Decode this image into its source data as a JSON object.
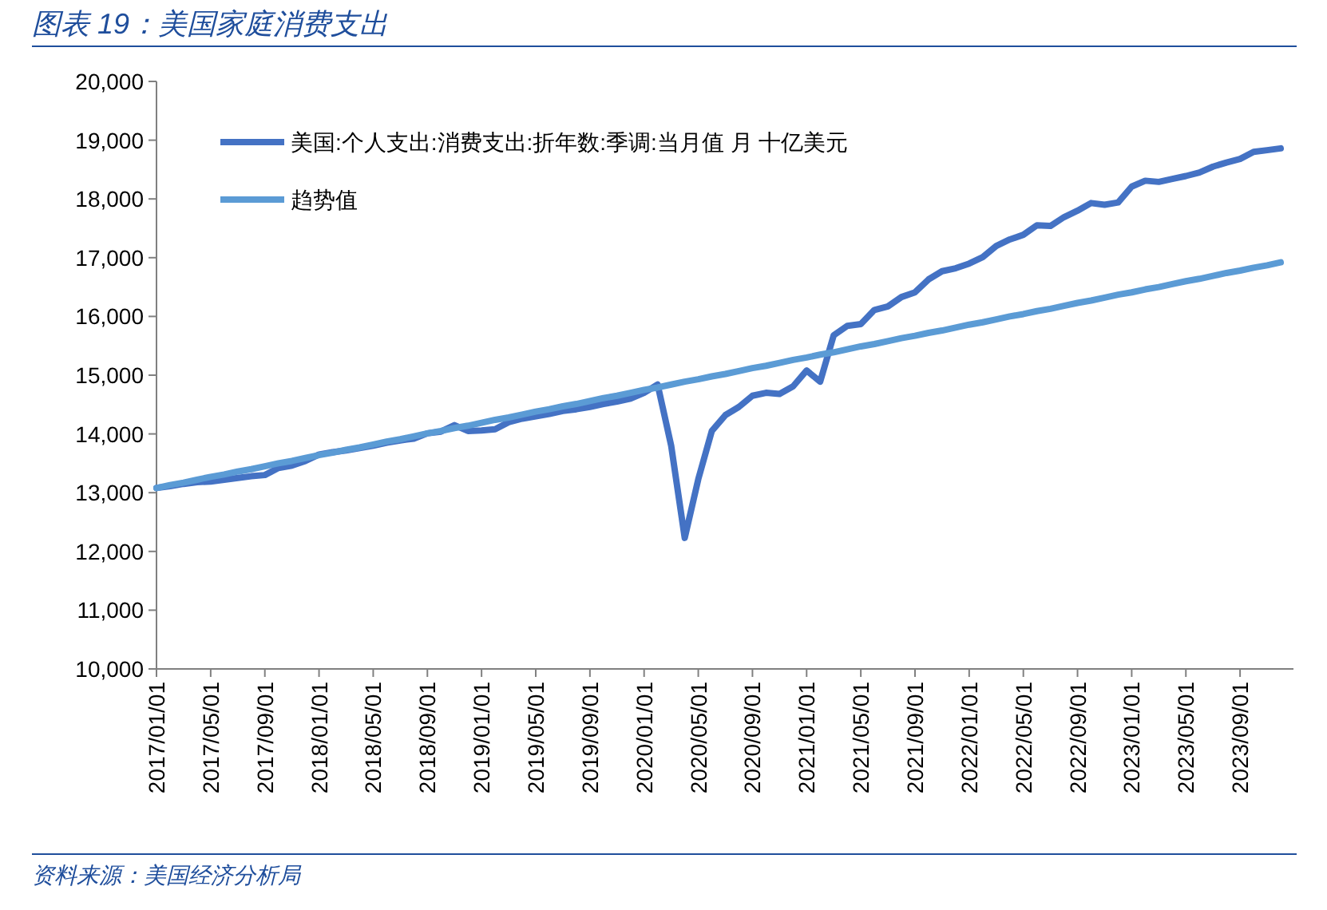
{
  "chart_data": {
    "type": "line",
    "title": "图表 19：美国家庭消费支出",
    "categories": [
      "2017/01/01",
      null,
      null,
      null,
      "2017/05/01",
      null,
      null,
      null,
      "2017/09/01",
      null,
      null,
      null,
      "2018/01/01",
      null,
      null,
      null,
      "2018/05/01",
      null,
      null,
      null,
      "2018/09/01",
      null,
      null,
      null,
      "2019/01/01",
      null,
      null,
      null,
      "2019/05/01",
      null,
      null,
      null,
      "2019/09/01",
      null,
      null,
      null,
      "2020/01/01",
      null,
      null,
      null,
      "2020/05/01",
      null,
      null,
      null,
      "2020/09/01",
      null,
      null,
      null,
      "2021/01/01",
      null,
      null,
      null,
      "2021/05/01",
      null,
      null,
      null,
      "2021/09/01",
      null,
      null,
      null,
      "2022/01/01",
      null,
      null,
      null,
      "2022/05/01",
      null,
      null,
      null,
      "2022/09/01",
      null,
      null,
      null,
      "2023/01/01",
      null,
      null,
      null,
      "2023/05/01",
      null,
      null,
      null,
      "2023/09/01",
      null,
      null,
      null
    ],
    "series": [
      {
        "name": "美国:个人支出:消费支出:折年数:季调:当月值 月 十亿美元",
        "color": "#4472c4",
        "values": [
          13080,
          13110,
          13150,
          13180,
          13190,
          13220,
          13250,
          13280,
          13300,
          13420,
          13460,
          13540,
          13650,
          13690,
          13720,
          13760,
          13800,
          13850,
          13890,
          13920,
          14010,
          14040,
          14150,
          14050,
          14060,
          14080,
          14200,
          14260,
          14300,
          14340,
          14390,
          14420,
          14460,
          14510,
          14550,
          14600,
          14700,
          14840,
          13800,
          12230,
          13230,
          14050,
          14320,
          14460,
          14650,
          14700,
          14680,
          14810,
          15080,
          14890,
          15680,
          15840,
          15870,
          16110,
          16170,
          16330,
          16410,
          16630,
          16770,
          16820,
          16900,
          17010,
          17200,
          17310,
          17390,
          17550,
          17540,
          17690,
          17800,
          17930,
          17900,
          17940,
          18210,
          18310,
          18290,
          18340,
          18390,
          18450,
          18550,
          18620,
          18680,
          18800,
          18830,
          18860
        ]
      },
      {
        "name": "趋势值",
        "color": "#5b9bd5",
        "values": [
          13080,
          13130,
          13170,
          13220,
          13270,
          13310,
          13360,
          13400,
          13450,
          13500,
          13540,
          13590,
          13640,
          13680,
          13730,
          13770,
          13820,
          13870,
          13910,
          13960,
          14010,
          14050,
          14100,
          14140,
          14190,
          14240,
          14280,
          14330,
          14380,
          14420,
          14470,
          14510,
          14560,
          14610,
          14650,
          14700,
          14750,
          14790,
          14840,
          14890,
          14930,
          14980,
          15020,
          15070,
          15120,
          15160,
          15210,
          15260,
          15300,
          15350,
          15390,
          15440,
          15490,
          15530,
          15580,
          15630,
          15670,
          15720,
          15760,
          15810,
          15860,
          15900,
          15950,
          16000,
          16040,
          16090,
          16130,
          16180,
          16230,
          16270,
          16320,
          16370,
          16410,
          16460,
          16500,
          16550,
          16600,
          16640,
          16690,
          16740,
          16780,
          16830,
          16870,
          16920
        ]
      }
    ],
    "ylim": [
      10000,
      20000
    ],
    "yticks": [
      {
        "value": 10000,
        "label": "10,000"
      },
      {
        "value": 11000,
        "label": "11,000"
      },
      {
        "value": 12000,
        "label": "12,000"
      },
      {
        "value": 13000,
        "label": "13,000"
      },
      {
        "value": 14000,
        "label": "14,000"
      },
      {
        "value": 15000,
        "label": "15,000"
      },
      {
        "value": 16000,
        "label": "16,000"
      },
      {
        "value": 17000,
        "label": "17,000"
      },
      {
        "value": 18000,
        "label": "18,000"
      },
      {
        "value": 19000,
        "label": "19,000"
      },
      {
        "value": 20000,
        "label": "20,000"
      }
    ],
    "grid": false,
    "legend": "top left",
    "marker": "none",
    "line_style": "solid",
    "annotations": [
      "资料来源：美国经济分析局"
    ]
  }
}
